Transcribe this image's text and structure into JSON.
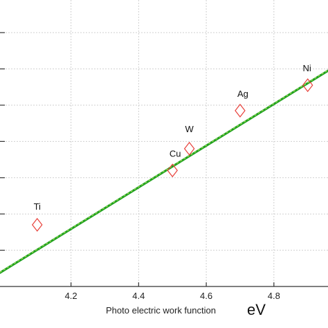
{
  "chart_data": {
    "type": "scatter",
    "title": "",
    "xlabel": "Photo electric work function",
    "xunit": "eV",
    "ylabel": "",
    "xlim": [
      3.99,
      4.96
    ],
    "ylim": [
      0,
      7.9
    ],
    "grid": true,
    "x_ticks": [
      4.2,
      4.4,
      4.6,
      4.8
    ],
    "x_tick_labels": [
      "4.2",
      "4.4",
      "4.6",
      "4.8"
    ],
    "y_gridlines": [
      1,
      2,
      3,
      4,
      5,
      6,
      7
    ],
    "points": [
      {
        "label": "Ti",
        "x": 4.1,
        "y": 1.7
      },
      {
        "label": "Cu",
        "x": 4.5,
        "y": 3.2
      },
      {
        "label": "W",
        "x": 4.55,
        "y": 3.8
      },
      {
        "label": "Ag",
        "x": 4.7,
        "y": 4.85
      },
      {
        "label": "Ni",
        "x": 4.9,
        "y": 5.55
      }
    ],
    "fit_line": {
      "x": [
        3.99,
        4.96
      ],
      "y": [
        0.38,
        5.95
      ]
    },
    "colors": {
      "marker": "#e8403a",
      "fit_line": "#20a020",
      "fit_highlight": "#c8f060",
      "grid": "#cfcfcf",
      "axis": "#333333"
    }
  }
}
